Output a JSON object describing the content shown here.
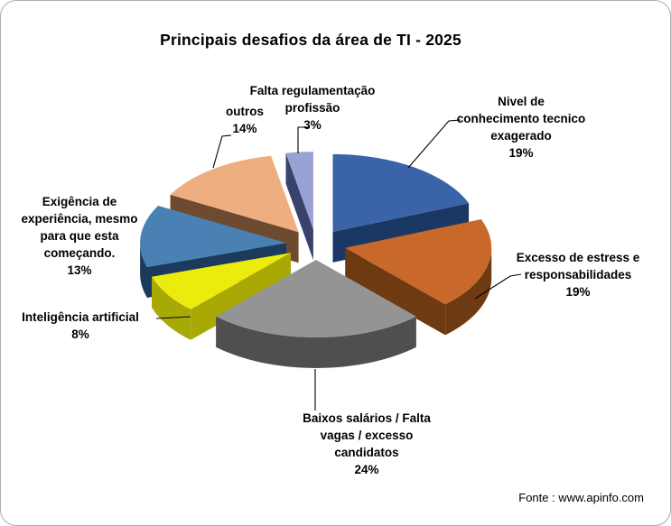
{
  "title": "Principais desafios da área de TI - 2025",
  "source_note": "Fonte : www.apinfo.com",
  "frame": {
    "border_color": "#ababab",
    "background": "#ffffff"
  },
  "chart_data": {
    "type": "pie",
    "style": "3d-exploded",
    "title": "Principais desafios da área de TI - 2025",
    "start_angle_deg": 0,
    "direction": "clockwise",
    "slices": [
      {
        "label": "Nivel de conhecimento tecnico exagerado",
        "pct": 19,
        "color": "#3b64a8",
        "side_color": "#1b3864"
      },
      {
        "label": "Excesso de estress e responsabilidades",
        "pct": 19,
        "color": "#c8682b",
        "side_color": "#6e3a12"
      },
      {
        "label": "Baixos salários / Falta vagas / excesso candidatos",
        "pct": 24,
        "color": "#949494",
        "side_color": "#4f4f4f"
      },
      {
        "label": "Inteligência artificial",
        "pct": 8,
        "color": "#ecec0c",
        "side_color": "#a9a906"
      },
      {
        "label": "Exigência de experiência, mesmo para que esta começando.",
        "pct": 13,
        "color": "#4a81b4",
        "side_color": "#1b3a5c"
      },
      {
        "label": "outros",
        "pct": 14,
        "color": "#efae80",
        "side_color": "#6e4a31"
      },
      {
        "label": "Falta regulamentação profissão",
        "pct": 3,
        "color": "#98a2d4",
        "side_color": "#39426b"
      }
    ]
  },
  "callouts": {
    "falta": {
      "lines": [
        "Falta regulamentação",
        "profissão",
        "3%"
      ]
    },
    "nivel": {
      "lines": [
        "Nivel de",
        "conhecimento tecnico",
        "exagerado",
        "19%"
      ]
    },
    "outros": {
      "lines": [
        "outros",
        "14%"
      ]
    },
    "excesso": {
      "lines": [
        "Excesso de estress e",
        "responsabilidades",
        "19%"
      ]
    },
    "baixos": {
      "lines": [
        "Baixos salários / Falta",
        "vagas / excesso",
        "candidatos",
        "24%"
      ]
    },
    "inteligencia": {
      "lines": [
        "Inteligência artificial",
        "8%"
      ]
    },
    "exigencia": {
      "lines": [
        "Exigência de",
        "experiência, mesmo",
        "para que esta",
        "começando.",
        "13%"
      ]
    }
  }
}
